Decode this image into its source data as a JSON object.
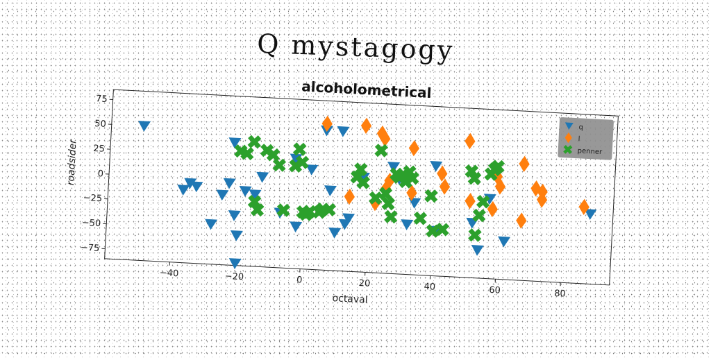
{
  "page": {
    "heading": "Q mystagogy"
  },
  "chart_data": {
    "type": "scatter",
    "title": "alcoholometrical",
    "xlabel": "octaval",
    "ylabel": "roadsider",
    "xlim": [
      -60,
      95
    ],
    "ylim": [
      -85,
      85
    ],
    "xticks": [
      -40,
      -20,
      0,
      20,
      40,
      60,
      80
    ],
    "yticks": [
      -75,
      -50,
      -25,
      0,
      25,
      50,
      75
    ],
    "grid": false,
    "legend": "top-right",
    "series": [
      {
        "name": "q",
        "marker": "triangle-down",
        "color": "#1f77b4",
        "points": [
          [
            -50,
            50
          ],
          [
            -37,
            -12
          ],
          [
            -35,
            -5
          ],
          [
            -33,
            -8
          ],
          [
            -28,
            -45
          ],
          [
            -25,
            -15
          ],
          [
            -23,
            -3
          ],
          [
            -21,
            -35
          ],
          [
            -22,
            38
          ],
          [
            -20,
            -55
          ],
          [
            -18,
            -10
          ],
          [
            -15,
            -13
          ],
          [
            -20,
            -83
          ],
          [
            -13,
            5
          ],
          [
            -7,
            -30
          ],
          [
            -2,
            -43
          ],
          [
            -3,
            25
          ],
          [
            2,
            15
          ],
          [
            8,
            -5
          ],
          [
            6,
            55
          ],
          [
            10,
            -47
          ],
          [
            11,
            55
          ],
          [
            13,
            -38
          ],
          [
            14,
            -32
          ],
          [
            18,
            10
          ],
          [
            27,
            22
          ],
          [
            29,
            10
          ],
          [
            32,
            -35
          ],
          [
            34,
            -13
          ],
          [
            40,
            25
          ],
          [
            41,
            -40
          ],
          [
            52,
            -30
          ],
          [
            54,
            -57
          ],
          [
            57,
            -5
          ],
          [
            62,
            -47
          ],
          [
            88,
            -15
          ]
        ]
      },
      {
        "name": "l",
        "marker": "diamond",
        "color": "#ff7f0e",
        "points": [
          [
            6,
            62
          ],
          [
            14,
            -10
          ],
          [
            18,
            62
          ],
          [
            22,
            -15
          ],
          [
            23,
            55
          ],
          [
            24,
            50
          ],
          [
            25,
            0
          ],
          [
            26,
            8
          ],
          [
            33,
            42
          ],
          [
            33,
            -3
          ],
          [
            42,
            18
          ],
          [
            43,
            5
          ],
          [
            50,
            52
          ],
          [
            51,
            -8
          ],
          [
            58,
            -15
          ],
          [
            59,
            18
          ],
          [
            60,
            8
          ],
          [
            67,
            32
          ],
          [
            67,
            -25
          ],
          [
            71,
            8
          ],
          [
            73,
            -3
          ],
          [
            73,
            5
          ],
          [
            86,
            -8
          ]
        ]
      },
      {
        "name": "penner",
        "marker": "x",
        "color": "#2ca02c",
        "points": [
          [
            -20,
            30
          ],
          [
            -18,
            28
          ],
          [
            -16,
            40
          ],
          [
            -15,
            -20
          ],
          [
            -14,
            -28
          ],
          [
            -12,
            32
          ],
          [
            -10,
            28
          ],
          [
            -8,
            18
          ],
          [
            -6,
            -27
          ],
          [
            -3,
            18
          ],
          [
            -2,
            35
          ],
          [
            -1,
            22
          ],
          [
            0,
            -28
          ],
          [
            1,
            -30
          ],
          [
            2,
            -27
          ],
          [
            5,
            -27
          ],
          [
            6,
            -24
          ],
          [
            8,
            -24
          ],
          [
            16,
            10
          ],
          [
            17,
            18
          ],
          [
            18,
            5
          ],
          [
            22,
            -10
          ],
          [
            23,
            38
          ],
          [
            25,
            -5
          ],
          [
            26,
            -15
          ],
          [
            27,
            -28
          ],
          [
            28,
            15
          ],
          [
            29,
            12
          ],
          [
            30,
            15
          ],
          [
            31,
            8
          ],
          [
            32,
            18
          ],
          [
            33,
            12
          ],
          [
            36,
            -28
          ],
          [
            39,
            -5
          ],
          [
            40,
            -40
          ],
          [
            43,
            -38
          ],
          [
            51,
            22
          ],
          [
            52,
            15
          ],
          [
            53,
            -42
          ],
          [
            54,
            -22
          ],
          [
            55,
            -8
          ],
          [
            57,
            20
          ],
          [
            58,
            25
          ],
          [
            59,
            28
          ]
        ]
      }
    ]
  }
}
